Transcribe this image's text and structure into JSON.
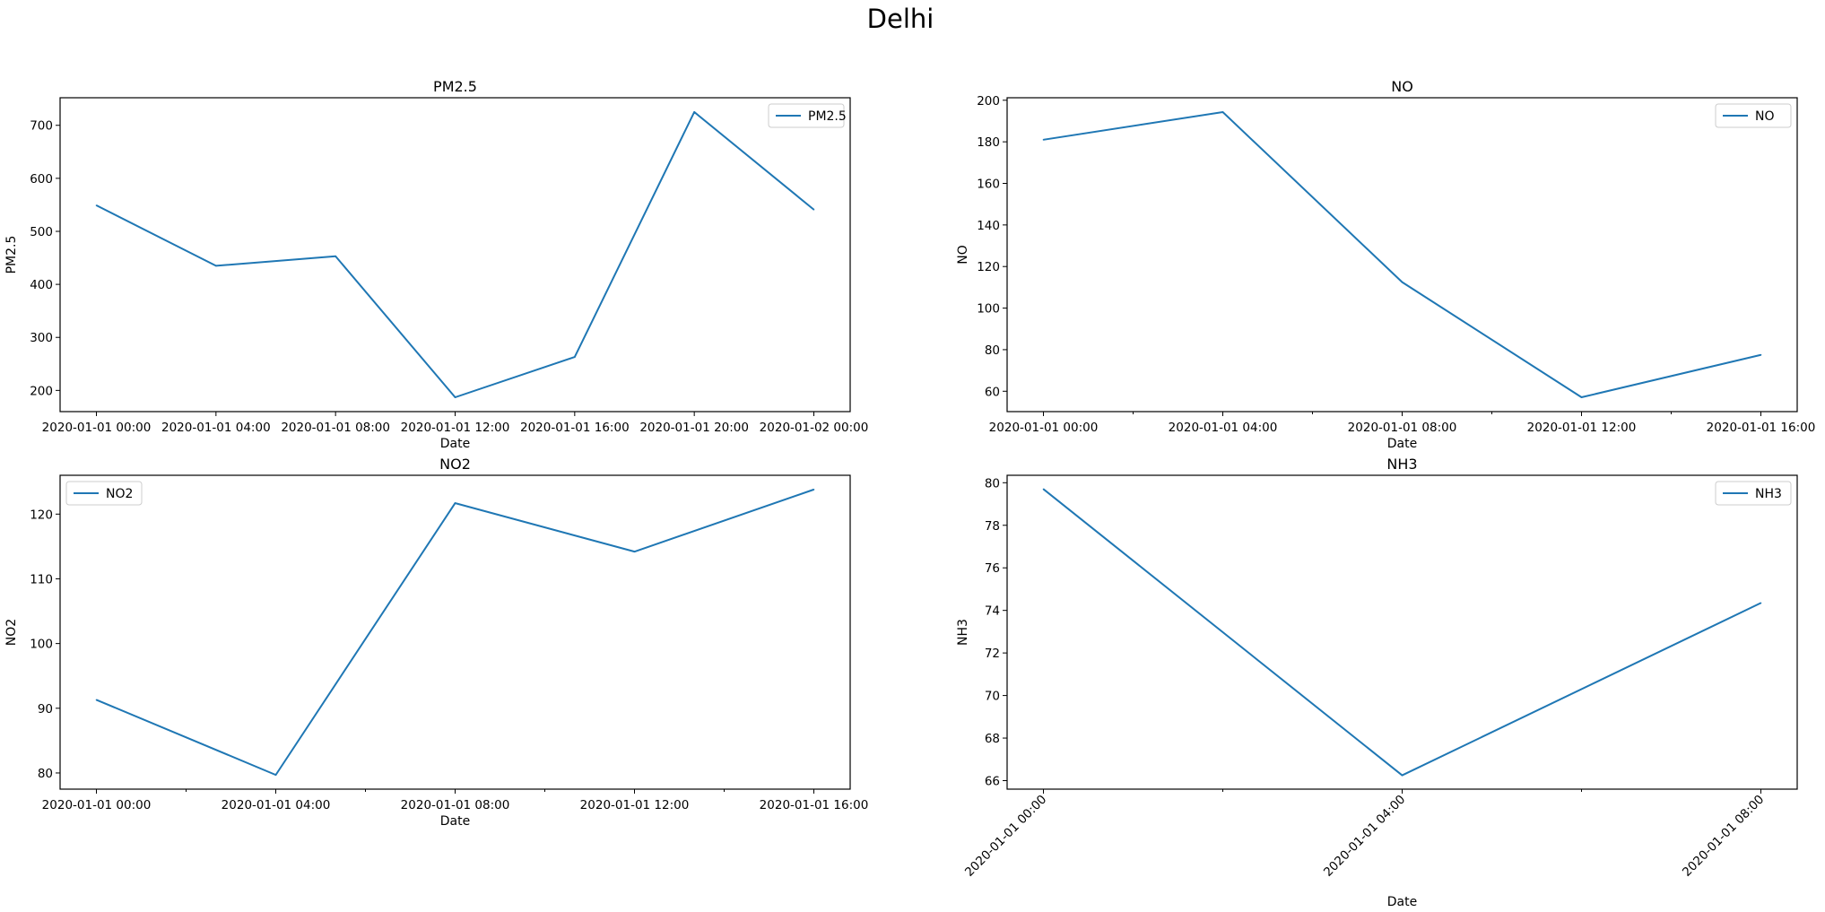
{
  "figure": {
    "title": "Delhi"
  },
  "chart_data": [
    {
      "type": "line",
      "title": "PM2.5",
      "xlabel": "Date",
      "ylabel": "PM2.5",
      "x": [
        "2020-01-01 00:00",
        "2020-01-01 04:00",
        "2020-01-01 08:00",
        "2020-01-01 12:00",
        "2020-01-01 16:00",
        "2020-01-01 20:00",
        "2020-01-02 00:00"
      ],
      "series": [
        {
          "name": "PM2.5",
          "values": [
            549,
            435,
            453,
            187,
            263,
            725,
            541
          ]
        }
      ],
      "ylim": [
        160,
        752
      ],
      "yticks": [
        200,
        300,
        400,
        500,
        600,
        700
      ],
      "xticks": [
        "2020-01-01 00:00",
        "2020-01-01 04:00",
        "2020-01-01 08:00",
        "2020-01-01 12:00",
        "2020-01-01 16:00",
        "2020-01-01 20:00",
        "2020-01-02 00:00"
      ],
      "legend": "upper right",
      "color": "#1f77b4",
      "grid": false
    },
    {
      "type": "line",
      "title": "NO",
      "xlabel": "Date",
      "ylabel": "NO",
      "x": [
        "2020-01-01 00:00",
        "2020-01-01 04:00",
        "2020-01-01 08:00",
        "2020-01-01 12:00",
        "2020-01-01 16:00"
      ],
      "series": [
        {
          "name": "NO",
          "values": [
            181,
            194.3,
            112.5,
            57.1,
            77.5
          ]
        }
      ],
      "ylim": [
        50.2,
        201.2
      ],
      "yticks": [
        60,
        80,
        100,
        120,
        140,
        160,
        180,
        200
      ],
      "xticks": [
        "2020-01-01 00:00",
        "2020-01-01 04:00",
        "2020-01-01 08:00",
        "2020-01-01 12:00",
        "2020-01-01 16:00"
      ],
      "legend": "upper right",
      "color": "#1f77b4",
      "grid": false
    },
    {
      "type": "line",
      "title": "NO2",
      "xlabel": "Date",
      "ylabel": "NO2",
      "x": [
        "2020-01-01 00:00",
        "2020-01-01 04:00",
        "2020-01-01 08:00",
        "2020-01-01 12:00",
        "2020-01-01 16:00"
      ],
      "series": [
        {
          "name": "NO2",
          "values": [
            91.3,
            79.7,
            121.7,
            114.2,
            123.8
          ]
        }
      ],
      "ylim": [
        77.5,
        126
      ],
      "yticks": [
        80,
        90,
        100,
        110,
        120
      ],
      "xticks": [
        "2020-01-01 00:00",
        "2020-01-01 04:00",
        "2020-01-01 08:00",
        "2020-01-01 12:00",
        "2020-01-01 16:00"
      ],
      "legend": "upper left",
      "color": "#1f77b4",
      "grid": false
    },
    {
      "type": "line",
      "title": "NH3",
      "xlabel": "Date",
      "ylabel": "NH3",
      "x": [
        "2020-01-01 00:00",
        "2020-01-01 04:00",
        "2020-01-01 08:00"
      ],
      "series": [
        {
          "name": "NH3",
          "values": [
            79.7,
            66.25,
            74.35
          ]
        }
      ],
      "ylim": [
        65.6,
        80.35
      ],
      "yticks": [
        66,
        68,
        70,
        72,
        74,
        76,
        78,
        80
      ],
      "xticks": [
        "2020-01-01 00:00",
        "2020-01-01 04:00",
        "2020-01-01 08:00"
      ],
      "xtick_rotation": 45,
      "legend": "upper right",
      "color": "#1f77b4",
      "grid": false
    }
  ]
}
